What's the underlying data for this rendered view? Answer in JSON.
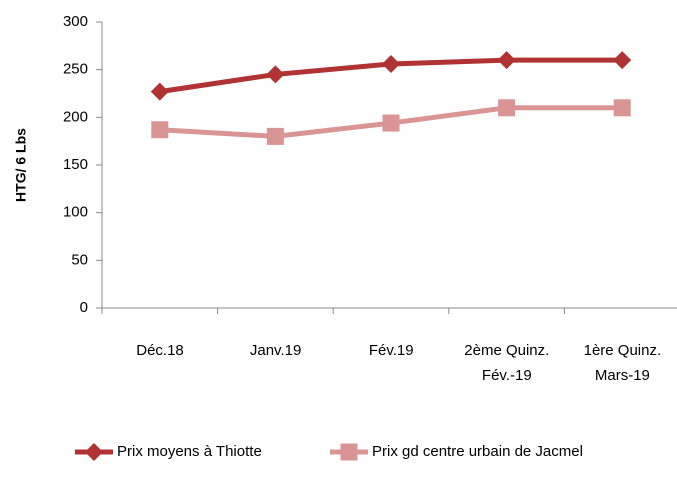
{
  "chart_data": {
    "type": "line",
    "ylabel": "HTG/ 6 Lbs",
    "categories": [
      "Déc.18",
      "Janv.19",
      "Fév.19",
      "2ème  Quinz.\nFév.-19",
      "1ère  Quinz.\nMars-19"
    ],
    "series": [
      {
        "name": "Prix moyens à Thiotte",
        "color": "#b03232",
        "marker": "diamond",
        "values": [
          227,
          245,
          256,
          260,
          260
        ]
      },
      {
        "name": "Prix gd centre urbain de Jacmel",
        "color": "#d99594",
        "marker": "square",
        "values": [
          187,
          180,
          194,
          210,
          210
        ]
      }
    ],
    "ylim": [
      0,
      300
    ],
    "yticks": [
      0,
      50,
      100,
      150,
      200,
      250,
      300
    ],
    "grid": false,
    "legend": "bottom"
  }
}
